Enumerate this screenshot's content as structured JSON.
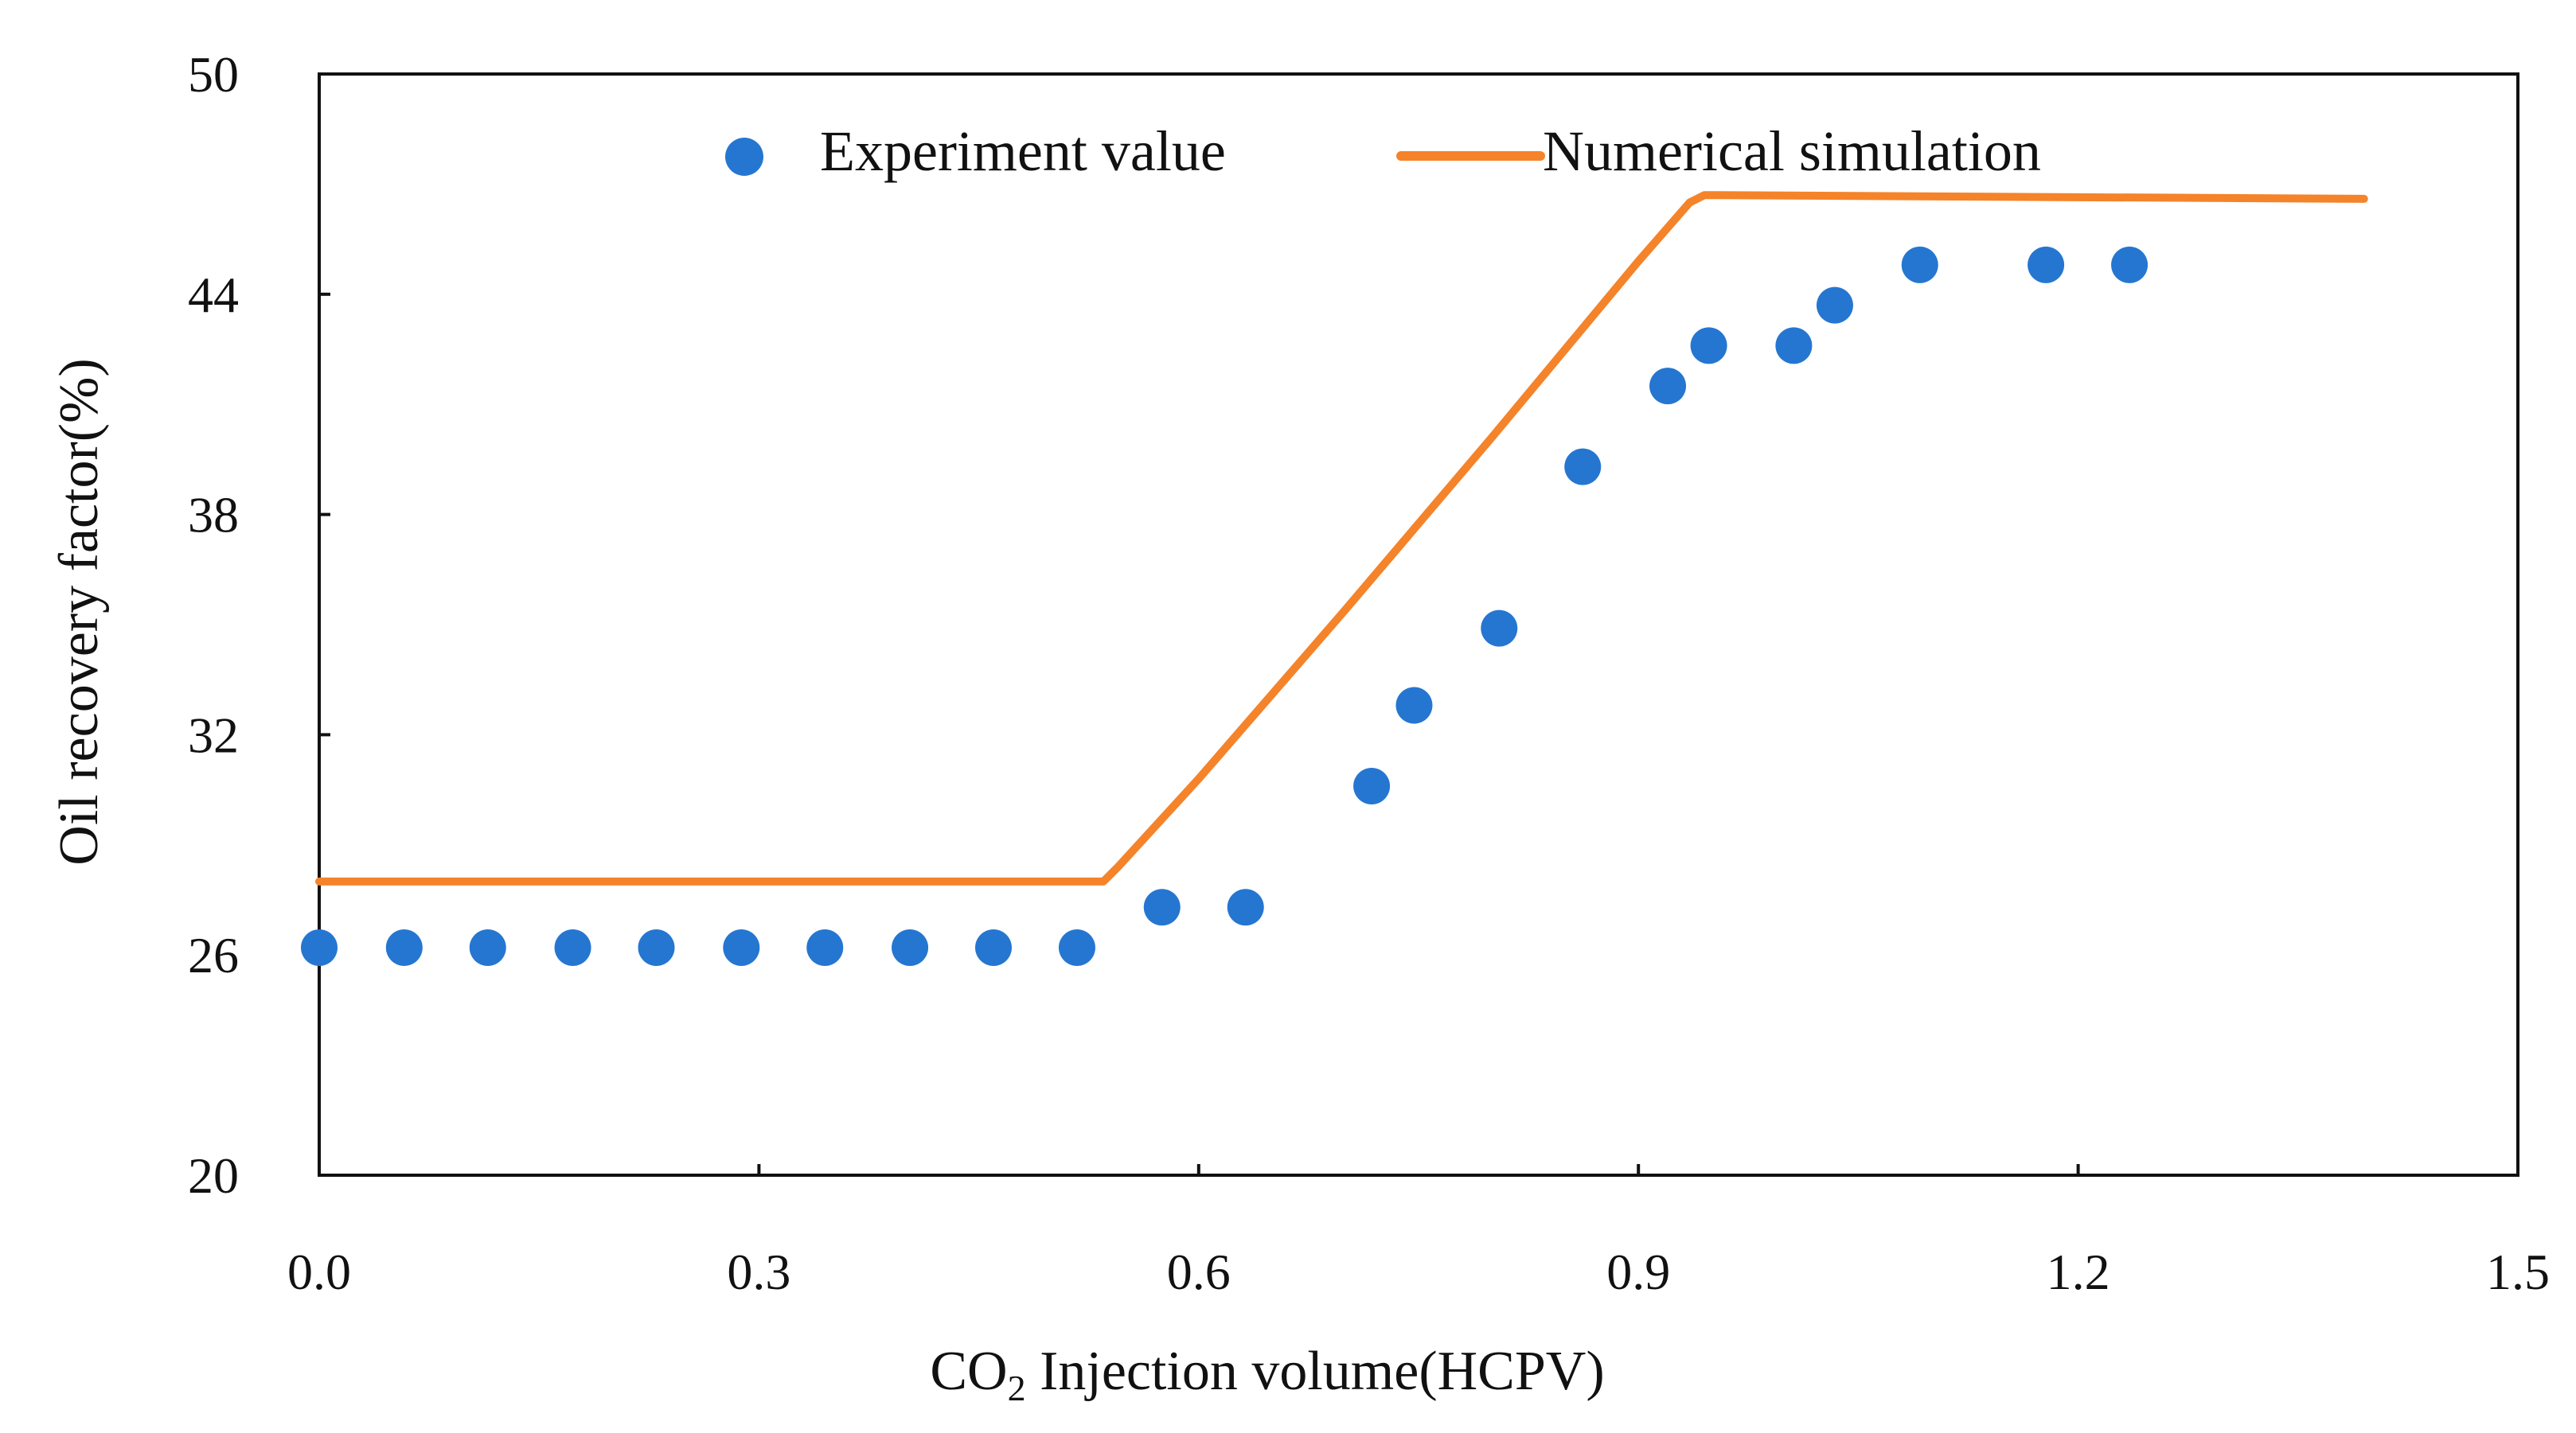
{
  "chart_data": {
    "type": "scatter",
    "title": "",
    "xlabel": {
      "prefix": "CO",
      "subscript": "2",
      "suffix": " Injection volume(HCPV)"
    },
    "ylabel": "Oil recovery factor(%)",
    "xlim": [
      0.0,
      1.5
    ],
    "ylim": [
      20,
      50
    ],
    "x_ticks": [
      0.0,
      0.3,
      0.6,
      0.9,
      1.2,
      1.5
    ],
    "x_tick_labels": [
      "0.0",
      "0.3",
      "0.6",
      "0.9",
      "1.2",
      "1.5"
    ],
    "y_ticks": [
      20,
      26,
      32,
      38,
      44,
      50
    ],
    "y_tick_labels": [
      "20",
      "26",
      "32",
      "38",
      "44",
      "50"
    ],
    "grid": false,
    "legend_position": "top-center",
    "series": [
      {
        "name": "Experiment value",
        "kind": "scatter",
        "color": "#2576D1",
        "points": [
          {
            "x": 0.0,
            "y": 26.2
          },
          {
            "x": 0.058,
            "y": 26.2
          },
          {
            "x": 0.115,
            "y": 26.2
          },
          {
            "x": 0.173,
            "y": 26.2
          },
          {
            "x": 0.23,
            "y": 26.2
          },
          {
            "x": 0.288,
            "y": 26.2
          },
          {
            "x": 0.345,
            "y": 26.2
          },
          {
            "x": 0.403,
            "y": 26.2
          },
          {
            "x": 0.46,
            "y": 26.2
          },
          {
            "x": 0.517,
            "y": 26.2
          },
          {
            "x": 0.575,
            "y": 27.3
          },
          {
            "x": 0.632,
            "y": 27.3
          },
          {
            "x": 0.718,
            "y": 30.6
          },
          {
            "x": 0.747,
            "y": 32.8
          },
          {
            "x": 0.805,
            "y": 34.9
          },
          {
            "x": 0.862,
            "y": 39.3
          },
          {
            "x": 0.92,
            "y": 41.5
          },
          {
            "x": 0.948,
            "y": 42.6
          },
          {
            "x": 1.006,
            "y": 42.6
          },
          {
            "x": 1.034,
            "y": 43.7
          },
          {
            "x": 1.092,
            "y": 44.8
          },
          {
            "x": 1.178,
            "y": 44.8
          },
          {
            "x": 1.235,
            "y": 44.8
          }
        ]
      },
      {
        "name": "Numerical simulation",
        "kind": "line",
        "color": "#F5832A",
        "points": [
          {
            "x": 0.0,
            "y": 28.0
          },
          {
            "x": 0.52,
            "y": 28.0
          },
          {
            "x": 0.535,
            "y": 28.0
          },
          {
            "x": 0.545,
            "y": 28.4
          },
          {
            "x": 0.6,
            "y": 30.8
          },
          {
            "x": 0.7,
            "y": 35.4
          },
          {
            "x": 0.8,
            "y": 40.1
          },
          {
            "x": 0.9,
            "y": 44.9
          },
          {
            "x": 0.935,
            "y": 46.5
          },
          {
            "x": 0.945,
            "y": 46.7
          },
          {
            "x": 1.395,
            "y": 46.6
          }
        ]
      }
    ]
  }
}
